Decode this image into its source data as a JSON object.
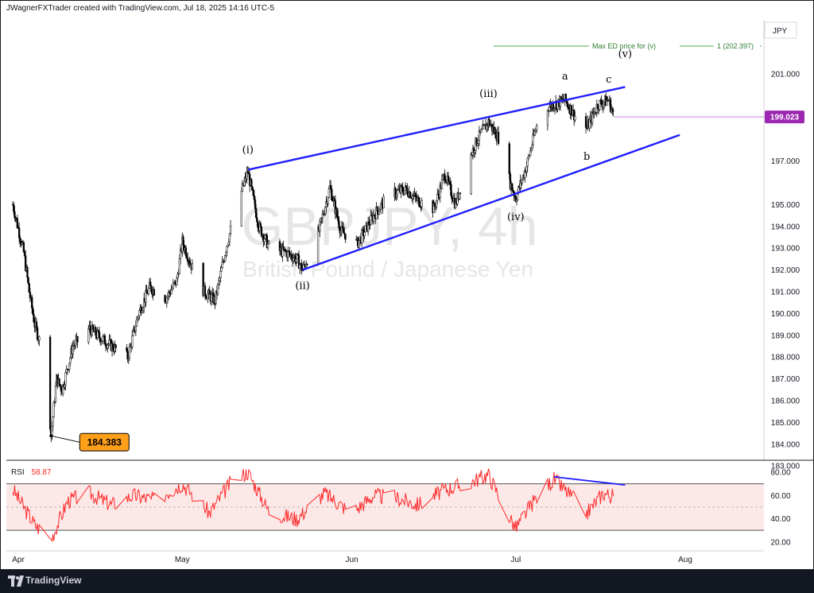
{
  "header": "JWagnerFXTrader created with TradingView.com, Jul 18, 2025 14:16 UTC-5",
  "footer": {
    "brand": "TradingView"
  },
  "colors": {
    "wedge": "#1f1fff",
    "candle": "#000000",
    "rsi": "#ff2a2a",
    "badge": "#ff9f1a",
    "price_tag": "#9c27b0"
  },
  "chart_data": [
    {
      "type": "candlestick",
      "symbol_watermark": "GBPJPY, 4h",
      "description_watermark": "British Pound / Japanese Yen",
      "currency": "JPY",
      "y_ticks": [
        "201.000",
        "199.023",
        "197.000",
        "195.000",
        "194.000",
        "193.000",
        "192.000",
        "191.000",
        "190.000",
        "189.000",
        "188.000",
        "187.000",
        "186.000",
        "185.000",
        "184.000",
        "183.000"
      ],
      "ylim": [
        183.0,
        202.0
      ],
      "x_ticks": [
        "Apr",
        "May",
        "Jun",
        "Jul",
        "Aug"
      ],
      "x_tick_dates": [
        "2025-04-01",
        "2025-05-01",
        "2025-06-01",
        "2025-07-01",
        "2025-08-01"
      ],
      "last_price": 199.023,
      "low_marker": {
        "label": "184.383",
        "date": "2025-04-07",
        "value": 184.383
      },
      "target_line": {
        "label": "Max ED price for (v)",
        "value_label": "1 (202.397)"
      },
      "waves": [
        {
          "label": "(i)",
          "date": "2025-05-13",
          "value": 196.5
        },
        {
          "label": "(ii)",
          "date": "2025-05-23",
          "value": 192.0
        },
        {
          "label": "(iii)",
          "date": "2025-06-26",
          "value": 199.0
        },
        {
          "label": "(iv)",
          "date": "2025-07-01",
          "value": 195.3
        },
        {
          "label": "a",
          "date": "2025-07-10",
          "value": 199.8
        },
        {
          "label": "b",
          "date": "2025-07-14",
          "value": 198.0
        },
        {
          "label": "c",
          "date": "2025-07-18",
          "value": 199.8
        },
        {
          "label": "(v)",
          "date": "2025-07-21",
          "value": 200.6
        }
      ],
      "wedge": {
        "upper": [
          [
            "2025-05-13",
            196.6
          ],
          [
            "2025-07-21",
            200.4
          ]
        ],
        "lower": [
          [
            "2025-05-23",
            192.0
          ],
          [
            "2025-07-31",
            198.2
          ]
        ]
      },
      "price_path": [
        [
          "2025-03-31",
          195.0
        ],
        [
          "2025-04-02",
          192.8
        ],
        [
          "2025-04-03",
          191.0
        ],
        [
          "2025-04-04",
          189.5
        ],
        [
          "2025-04-06",
          187.8
        ],
        [
          "2025-04-07",
          184.4
        ],
        [
          "2025-04-08",
          187.0
        ],
        [
          "2025-04-09",
          186.5
        ],
        [
          "2025-04-11",
          188.5
        ],
        [
          "2025-04-14",
          189.3
        ],
        [
          "2025-04-17",
          188.7
        ],
        [
          "2025-04-21",
          188.0
        ],
        [
          "2025-04-23",
          190.0
        ],
        [
          "2025-04-25",
          191.2
        ],
        [
          "2025-04-28",
          190.7
        ],
        [
          "2025-04-30",
          191.5
        ],
        [
          "2025-05-01",
          193.3
        ],
        [
          "2025-05-03",
          192.0
        ],
        [
          "2025-05-05",
          191.0
        ],
        [
          "2025-05-07",
          190.6
        ],
        [
          "2025-05-09",
          193.0
        ],
        [
          "2025-05-11",
          195.0
        ],
        [
          "2025-05-13",
          196.5
        ],
        [
          "2025-05-15",
          194.0
        ],
        [
          "2025-05-17",
          193.0
        ],
        [
          "2025-05-20",
          192.8
        ],
        [
          "2025-05-22",
          192.5
        ],
        [
          "2025-05-23",
          192.0
        ],
        [
          "2025-05-26",
          193.8
        ],
        [
          "2025-05-28",
          195.8
        ],
        [
          "2025-05-30",
          193.8
        ],
        [
          "2025-06-02",
          193.2
        ],
        [
          "2025-06-05",
          194.5
        ],
        [
          "2025-06-08",
          195.5
        ],
        [
          "2025-06-11",
          195.7
        ],
        [
          "2025-06-13",
          195.2
        ],
        [
          "2025-06-16",
          194.8
        ],
        [
          "2025-06-18",
          196.4
        ],
        [
          "2025-06-20",
          195.0
        ],
        [
          "2025-06-22",
          196.8
        ],
        [
          "2025-06-24",
          198.0
        ],
        [
          "2025-06-26",
          198.8
        ],
        [
          "2025-06-28",
          198.0
        ],
        [
          "2025-06-30",
          196.0
        ],
        [
          "2025-07-01",
          195.3
        ],
        [
          "2025-07-03",
          196.8
        ],
        [
          "2025-07-05",
          198.8
        ],
        [
          "2025-07-07",
          199.5
        ],
        [
          "2025-07-10",
          199.8
        ],
        [
          "2025-07-12",
          199.0
        ],
        [
          "2025-07-14",
          198.5
        ],
        [
          "2025-07-16",
          199.6
        ],
        [
          "2025-07-18",
          199.8
        ],
        [
          "2025-07-19",
          199.0
        ]
      ]
    },
    {
      "type": "line",
      "indicator": "RSI",
      "current_value": "58.87",
      "y_ticks": [
        "80.00",
        "60.00",
        "40.00",
        "20.00"
      ],
      "ylim": [
        17,
        85
      ],
      "band": [
        30,
        70
      ],
      "divergence_line": [
        [
          "2025-07-08",
          76
        ],
        [
          "2025-07-21",
          69
        ]
      ],
      "series_path": [
        [
          "2025-03-31",
          65
        ],
        [
          "2025-04-04",
          35
        ],
        [
          "2025-04-07",
          22
        ],
        [
          "2025-04-10",
          55
        ],
        [
          "2025-04-14",
          62
        ],
        [
          "2025-04-18",
          52
        ],
        [
          "2025-04-22",
          60
        ],
        [
          "2025-04-26",
          56
        ],
        [
          "2025-05-01",
          70
        ],
        [
          "2025-05-06",
          45
        ],
        [
          "2025-05-10",
          72
        ],
        [
          "2025-05-13",
          80
        ],
        [
          "2025-05-17",
          45
        ],
        [
          "2025-05-22",
          40
        ],
        [
          "2025-05-27",
          62
        ],
        [
          "2025-06-01",
          45
        ],
        [
          "2025-06-05",
          60
        ],
        [
          "2025-06-09",
          58
        ],
        [
          "2025-06-13",
          52
        ],
        [
          "2025-06-18",
          65
        ],
        [
          "2025-06-22",
          70
        ],
        [
          "2025-06-26",
          78
        ],
        [
          "2025-06-30",
          40
        ],
        [
          "2025-07-01",
          32
        ],
        [
          "2025-07-05",
          60
        ],
        [
          "2025-07-08",
          74
        ],
        [
          "2025-07-12",
          55
        ],
        [
          "2025-07-14",
          45
        ],
        [
          "2025-07-17",
          62
        ],
        [
          "2025-07-19",
          58.87
        ]
      ]
    }
  ]
}
